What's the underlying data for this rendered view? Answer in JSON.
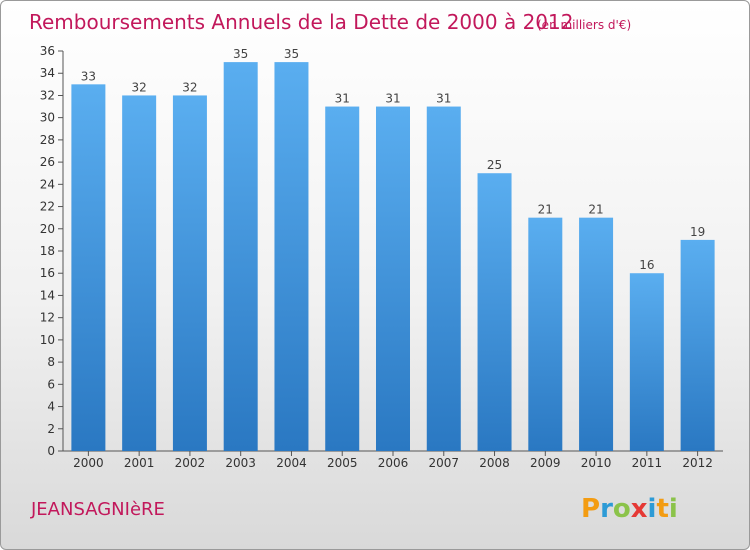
{
  "chart_data": {
    "type": "bar",
    "title": "Remboursements Annuels de la Dette de 2000 à 2012",
    "unit_note": "(en milliers d'€)",
    "categories": [
      "2000",
      "2001",
      "2002",
      "2003",
      "2004",
      "2005",
      "2006",
      "2007",
      "2008",
      "2009",
      "2010",
      "2011",
      "2012"
    ],
    "values": [
      33,
      32,
      32,
      35,
      35,
      31,
      31,
      31,
      25,
      21,
      21,
      16,
      19
    ],
    "ylim": [
      0,
      36
    ],
    "yticks": [
      0,
      2,
      4,
      6,
      8,
      10,
      12,
      14,
      16,
      18,
      20,
      22,
      24,
      26,
      28,
      30,
      32,
      34,
      36
    ],
    "grid": false,
    "legend": "none",
    "bar_color": "#3f8fd6"
  },
  "footer": {
    "commune": "JEANSAGNIèRE"
  },
  "logo": {
    "letters": [
      "P",
      "r",
      "o",
      "x",
      "i",
      "t",
      "i"
    ],
    "colors": [
      "#f39c12",
      "#2d9bd6",
      "#8bc34a",
      "#e53935",
      "#2d9bd6",
      "#f39c12",
      "#8bc34a"
    ]
  }
}
